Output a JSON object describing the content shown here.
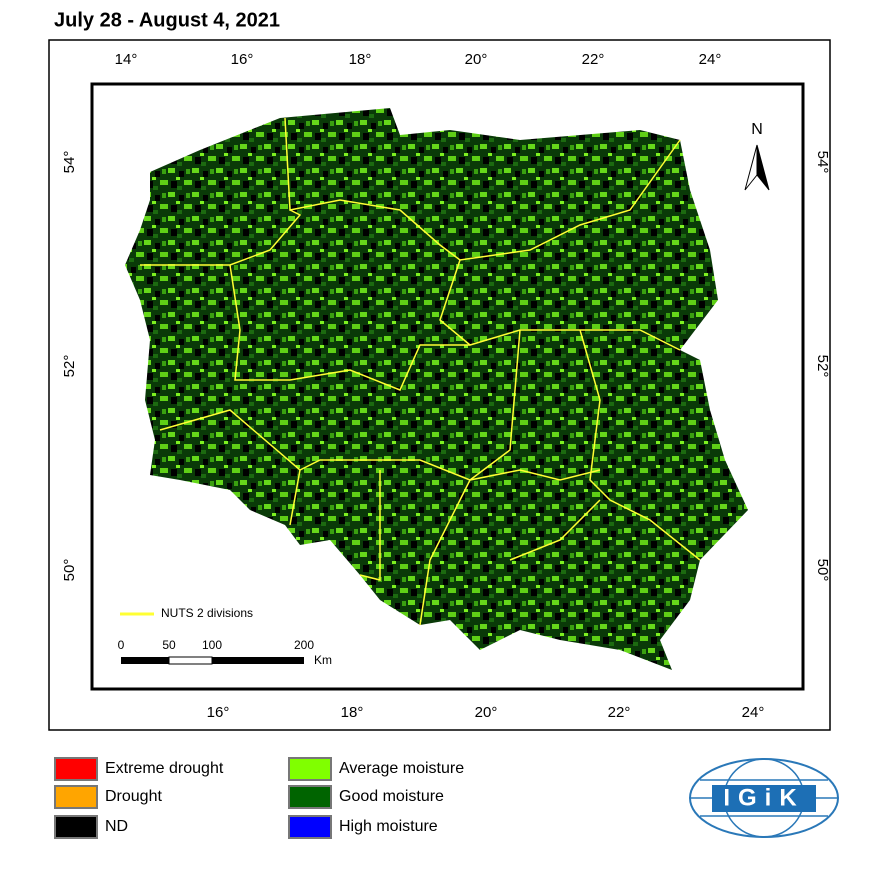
{
  "header": {
    "title": "July 28 - August 4, 2021"
  },
  "axes": {
    "top": [
      "14°",
      "16°",
      "18°",
      "20°",
      "22°",
      "24°"
    ],
    "bottom": [
      "16°",
      "18°",
      "20°",
      "22°",
      "24°"
    ],
    "left": [
      "54°",
      "52°",
      "50°"
    ],
    "right": [
      "54°",
      "52°",
      "50°"
    ]
  },
  "map": {
    "north": "N",
    "nuts_label": "NUTS 2 divisions",
    "scale_bar": {
      "labels": [
        "0",
        "50",
        "100",
        "200"
      ],
      "unit": "Km"
    }
  },
  "legend": [
    {
      "label": "Extreme drought",
      "color": "#ff0000"
    },
    {
      "label": "Drought",
      "color": "#ffa500"
    },
    {
      "label": "ND",
      "color": "#000000"
    },
    {
      "label": "Average moisture",
      "color": "#80ff00"
    },
    {
      "label": "Good moisture",
      "color": "#006400"
    },
    {
      "label": "High moisture",
      "color": "#0000ff"
    }
  ],
  "logo": "IGiK"
}
